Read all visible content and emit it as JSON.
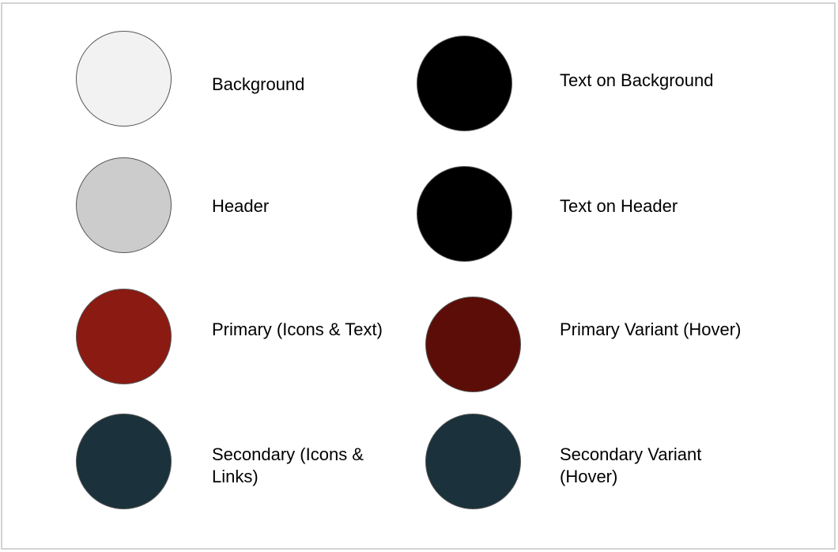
{
  "palette": {
    "left": [
      {
        "label": "Background",
        "color": "#f2f2f2"
      },
      {
        "label": "Header",
        "color": "#cccccc"
      },
      {
        "label": "Primary (Icons & Text)",
        "color": "#8b1a12"
      },
      {
        "label": "Secondary (Icons &\nLinks)",
        "color": "#1b313b"
      }
    ],
    "right": [
      {
        "label": "Text on Background",
        "color": "#000000"
      },
      {
        "label": "Text on Header",
        "color": "#000000"
      },
      {
        "label": "Primary Variant (Hover)",
        "color": "#5c0d07"
      },
      {
        "label": "Secondary Variant\n(Hover)",
        "color": "#1b313b"
      }
    ]
  }
}
